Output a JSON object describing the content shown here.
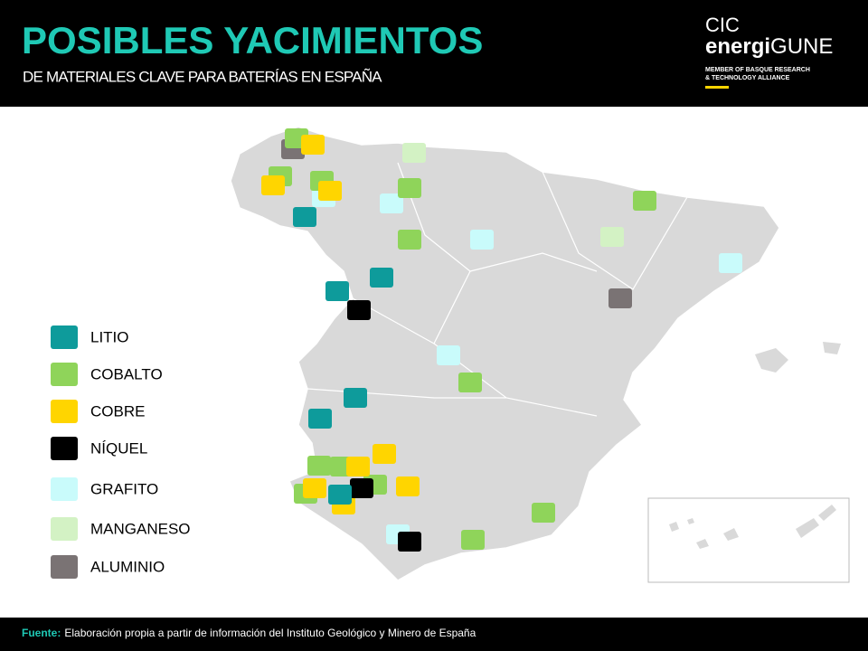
{
  "header": {
    "title": "POSIBLES YACIMIENTOS",
    "subtitle": "DE MATERIALES CLAVE PARA BATERÍAS EN ESPAÑA"
  },
  "logo": {
    "line1": "CIC",
    "brand_a": "energi",
    "brand_b": "GUNE",
    "tagline": [
      "MEMBER OF BASQUE RESEARCH",
      "& TECHNOLOGY ALLIANCE"
    ]
  },
  "legend": [
    {
      "label": "LITIO",
      "color": "#0e9b9b"
    },
    {
      "label": "COBALTO",
      "color": "#8fd45a"
    },
    {
      "label": "COBRE",
      "color": "#ffd500"
    },
    {
      "label": "NÍQUEL",
      "color": "#000000"
    },
    {
      "label": "GRAFITO",
      "color": "#c9fbfb"
    },
    {
      "label": "MANGANESO",
      "color": "#d3f2c4"
    },
    {
      "label": "ALUMINIO",
      "color": "#7a7374"
    }
  ],
  "footer": {
    "label": "Fuente:",
    "text": "Elaboración propia a partir de información del Instituto Geológico y Minero de España"
  }
}
